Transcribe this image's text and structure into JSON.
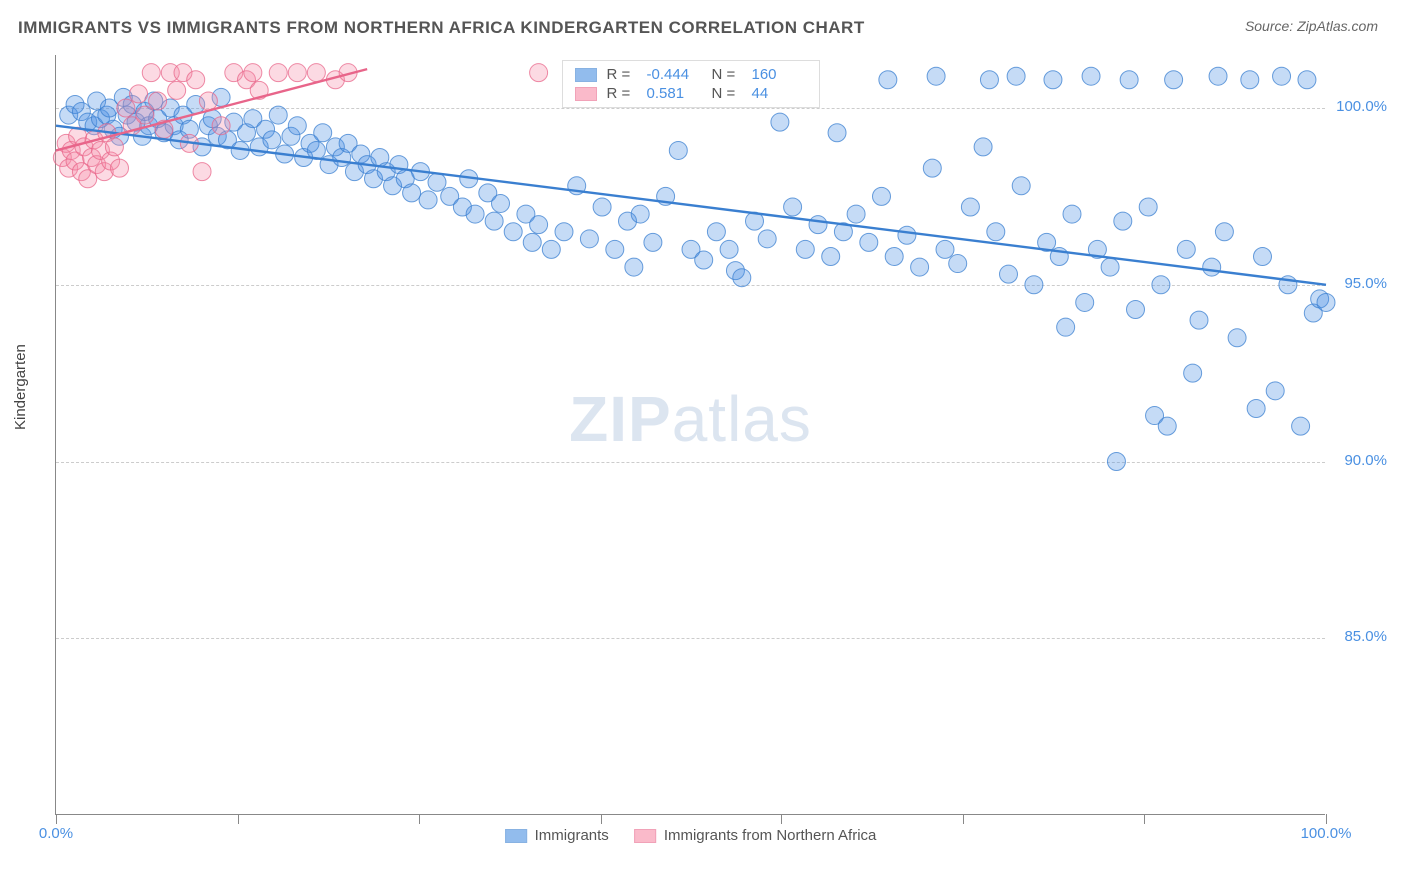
{
  "title": "IMMIGRANTS VS IMMIGRANTS FROM NORTHERN AFRICA KINDERGARTEN CORRELATION CHART",
  "source": "Source: ZipAtlas.com",
  "ylabel": "Kindergarten",
  "watermark_left": "ZIP",
  "watermark_right": "atlas",
  "chart": {
    "type": "scatter",
    "xlim": [
      0,
      100
    ],
    "ylim": [
      80,
      101.5
    ],
    "x_ticks": [
      0,
      14.3,
      28.6,
      42.9,
      57.1,
      71.4,
      85.7,
      100
    ],
    "x_tick_labels": {
      "0": "0.0%",
      "100": "100.0%"
    },
    "y_gridlines": [
      85,
      90,
      95,
      100
    ],
    "y_tick_labels": {
      "85": "85.0%",
      "90": "90.0%",
      "95": "95.0%",
      "100": "100.0%"
    },
    "background_color": "#ffffff",
    "grid_color": "#cccccc",
    "marker_radius": 9,
    "marker_opacity": 0.32,
    "marker_stroke_opacity": 0.75,
    "series": [
      {
        "name": "Immigrants",
        "color": "#4a90e2",
        "stroke": "#3a7fd0",
        "R": "-0.444",
        "N": "160",
        "trend": {
          "x1": 0,
          "y1": 99.5,
          "x2": 100,
          "y2": 95.0,
          "width": 2.4
        },
        "points": [
          [
            1,
            99.8
          ],
          [
            1.5,
            100.1
          ],
          [
            2,
            99.9
          ],
          [
            2.5,
            99.6
          ],
          [
            3,
            99.5
          ],
          [
            3.2,
            100.2
          ],
          [
            3.5,
            99.7
          ],
          [
            4,
            99.8
          ],
          [
            4.2,
            100
          ],
          [
            4.5,
            99.4
          ],
          [
            5,
            99.2
          ],
          [
            5.3,
            100.3
          ],
          [
            5.6,
            99.8
          ],
          [
            6,
            100.1
          ],
          [
            6.3,
            99.6
          ],
          [
            6.8,
            99.2
          ],
          [
            7,
            99.9
          ],
          [
            7.3,
            99.5
          ],
          [
            7.7,
            100.2
          ],
          [
            8,
            99.7
          ],
          [
            8.5,
            99.3
          ],
          [
            9,
            100
          ],
          [
            9.3,
            99.5
          ],
          [
            9.7,
            99.1
          ],
          [
            10,
            99.8
          ],
          [
            10.5,
            99.4
          ],
          [
            11,
            100.1
          ],
          [
            11.5,
            98.9
          ],
          [
            12,
            99.5
          ],
          [
            12.3,
            99.7
          ],
          [
            12.7,
            99.2
          ],
          [
            13,
            100.3
          ],
          [
            13.5,
            99.1
          ],
          [
            14,
            99.6
          ],
          [
            14.5,
            98.8
          ],
          [
            15,
            99.3
          ],
          [
            15.5,
            99.7
          ],
          [
            16,
            98.9
          ],
          [
            16.5,
            99.4
          ],
          [
            17,
            99.1
          ],
          [
            17.5,
            99.8
          ],
          [
            18,
            98.7
          ],
          [
            18.5,
            99.2
          ],
          [
            19,
            99.5
          ],
          [
            19.5,
            98.6
          ],
          [
            20,
            99.0
          ],
          [
            20.5,
            98.8
          ],
          [
            21,
            99.3
          ],
          [
            21.5,
            98.4
          ],
          [
            22,
            98.9
          ],
          [
            22.5,
            98.6
          ],
          [
            23,
            99.0
          ],
          [
            23.5,
            98.2
          ],
          [
            24,
            98.7
          ],
          [
            24.5,
            98.4
          ],
          [
            25,
            98.0
          ],
          [
            25.5,
            98.6
          ],
          [
            26,
            98.2
          ],
          [
            26.5,
            97.8
          ],
          [
            27,
            98.4
          ],
          [
            27.5,
            98.0
          ],
          [
            28,
            97.6
          ],
          [
            28.7,
            98.2
          ],
          [
            29.3,
            97.4
          ],
          [
            30,
            97.9
          ],
          [
            31,
            97.5
          ],
          [
            32,
            97.2
          ],
          [
            32.5,
            98.0
          ],
          [
            33,
            97.0
          ],
          [
            34,
            97.6
          ],
          [
            34.5,
            96.8
          ],
          [
            35,
            97.3
          ],
          [
            36,
            96.5
          ],
          [
            37,
            97.0
          ],
          [
            37.5,
            96.2
          ],
          [
            38,
            96.7
          ],
          [
            39,
            96.0
          ],
          [
            40,
            96.5
          ],
          [
            41,
            97.8
          ],
          [
            42,
            96.3
          ],
          [
            43,
            97.2
          ],
          [
            44,
            96.0
          ],
          [
            45,
            96.8
          ],
          [
            45.5,
            95.5
          ],
          [
            46,
            97.0
          ],
          [
            47,
            96.2
          ],
          [
            48,
            97.5
          ],
          [
            49,
            98.8
          ],
          [
            50,
            96.0
          ],
          [
            51,
            95.7
          ],
          [
            52,
            96.5
          ],
          [
            53,
            96.0
          ],
          [
            53.5,
            95.4
          ],
          [
            54,
            95.2
          ],
          [
            55,
            96.8
          ],
          [
            56,
            96.3
          ],
          [
            57,
            99.6
          ],
          [
            58,
            97.2
          ],
          [
            59,
            96.0
          ],
          [
            60,
            96.7
          ],
          [
            61,
            95.8
          ],
          [
            61.5,
            99.3
          ],
          [
            62,
            96.5
          ],
          [
            63,
            97.0
          ],
          [
            64,
            96.2
          ],
          [
            65,
            97.5
          ],
          [
            65.5,
            100.8
          ],
          [
            66,
            95.8
          ],
          [
            67,
            96.4
          ],
          [
            68,
            95.5
          ],
          [
            69,
            98.3
          ],
          [
            69.3,
            100.9
          ],
          [
            70,
            96.0
          ],
          [
            71,
            95.6
          ],
          [
            72,
            97.2
          ],
          [
            73,
            98.9
          ],
          [
            73.5,
            100.8
          ],
          [
            74,
            96.5
          ],
          [
            75,
            95.3
          ],
          [
            75.6,
            100.9
          ],
          [
            76,
            97.8
          ],
          [
            77,
            95.0
          ],
          [
            78,
            96.2
          ],
          [
            78.5,
            100.8
          ],
          [
            79,
            95.8
          ],
          [
            79.5,
            93.8
          ],
          [
            80,
            97.0
          ],
          [
            81,
            94.5
          ],
          [
            81.5,
            100.9
          ],
          [
            82,
            96.0
          ],
          [
            83,
            95.5
          ],
          [
            83.5,
            90.0
          ],
          [
            84,
            96.8
          ],
          [
            84.5,
            100.8
          ],
          [
            85,
            94.3
          ],
          [
            86,
            97.2
          ],
          [
            86.5,
            91.3
          ],
          [
            87,
            95.0
          ],
          [
            87.5,
            91.0
          ],
          [
            88,
            100.8
          ],
          [
            89,
            96.0
          ],
          [
            89.5,
            92.5
          ],
          [
            90,
            94.0
          ],
          [
            91,
            95.5
          ],
          [
            91.5,
            100.9
          ],
          [
            92,
            96.5
          ],
          [
            93,
            93.5
          ],
          [
            94,
            100.8
          ],
          [
            94.5,
            91.5
          ],
          [
            95,
            95.8
          ],
          [
            96,
            92.0
          ],
          [
            96.5,
            100.9
          ],
          [
            97,
            95.0
          ],
          [
            98,
            91.0
          ],
          [
            98.5,
            100.8
          ],
          [
            99,
            94.2
          ],
          [
            99.5,
            94.6
          ],
          [
            100,
            94.5
          ]
        ]
      },
      {
        "name": "Immigrants from Northern Africa",
        "color": "#f78da7",
        "stroke": "#e8658a",
        "R": "0.581",
        "N": "44",
        "trend": {
          "x1": 0,
          "y1": 98.8,
          "x2": 24.5,
          "y2": 101.1,
          "width": 2.4
        },
        "points": [
          [
            0.5,
            98.6
          ],
          [
            0.8,
            99.0
          ],
          [
            1.0,
            98.3
          ],
          [
            1.2,
            98.8
          ],
          [
            1.5,
            98.5
          ],
          [
            1.7,
            99.2
          ],
          [
            2.0,
            98.2
          ],
          [
            2.2,
            98.9
          ],
          [
            2.5,
            98.0
          ],
          [
            2.8,
            98.6
          ],
          [
            3.0,
            99.1
          ],
          [
            3.2,
            98.4
          ],
          [
            3.5,
            98.8
          ],
          [
            3.8,
            98.2
          ],
          [
            4.0,
            99.3
          ],
          [
            4.3,
            98.5
          ],
          [
            4.6,
            98.9
          ],
          [
            5.0,
            98.3
          ],
          [
            5.5,
            100.0
          ],
          [
            6.0,
            99.5
          ],
          [
            6.5,
            100.4
          ],
          [
            7.0,
            99.8
          ],
          [
            7.5,
            101.0
          ],
          [
            8.0,
            100.2
          ],
          [
            8.5,
            99.4
          ],
          [
            9.0,
            101.0
          ],
          [
            9.5,
            100.5
          ],
          [
            10.0,
            101.0
          ],
          [
            10.5,
            99.0
          ],
          [
            11.0,
            100.8
          ],
          [
            11.5,
            98.2
          ],
          [
            12.0,
            100.2
          ],
          [
            13.0,
            99.5
          ],
          [
            14.0,
            101.0
          ],
          [
            15.0,
            100.8
          ],
          [
            15.5,
            101.0
          ],
          [
            16.0,
            100.5
          ],
          [
            17.5,
            101.0
          ],
          [
            19.0,
            101.0
          ],
          [
            20.5,
            101.0
          ],
          [
            22.0,
            100.8
          ],
          [
            23.0,
            101.0
          ],
          [
            38.0,
            101.0
          ],
          [
            42.0,
            101.0
          ]
        ]
      }
    ]
  },
  "bottom_legend": {
    "series1_label": "Immigrants",
    "series2_label": "Immigrants from Northern Africa"
  },
  "legend_labels": {
    "R": "R =",
    "N": "N ="
  }
}
